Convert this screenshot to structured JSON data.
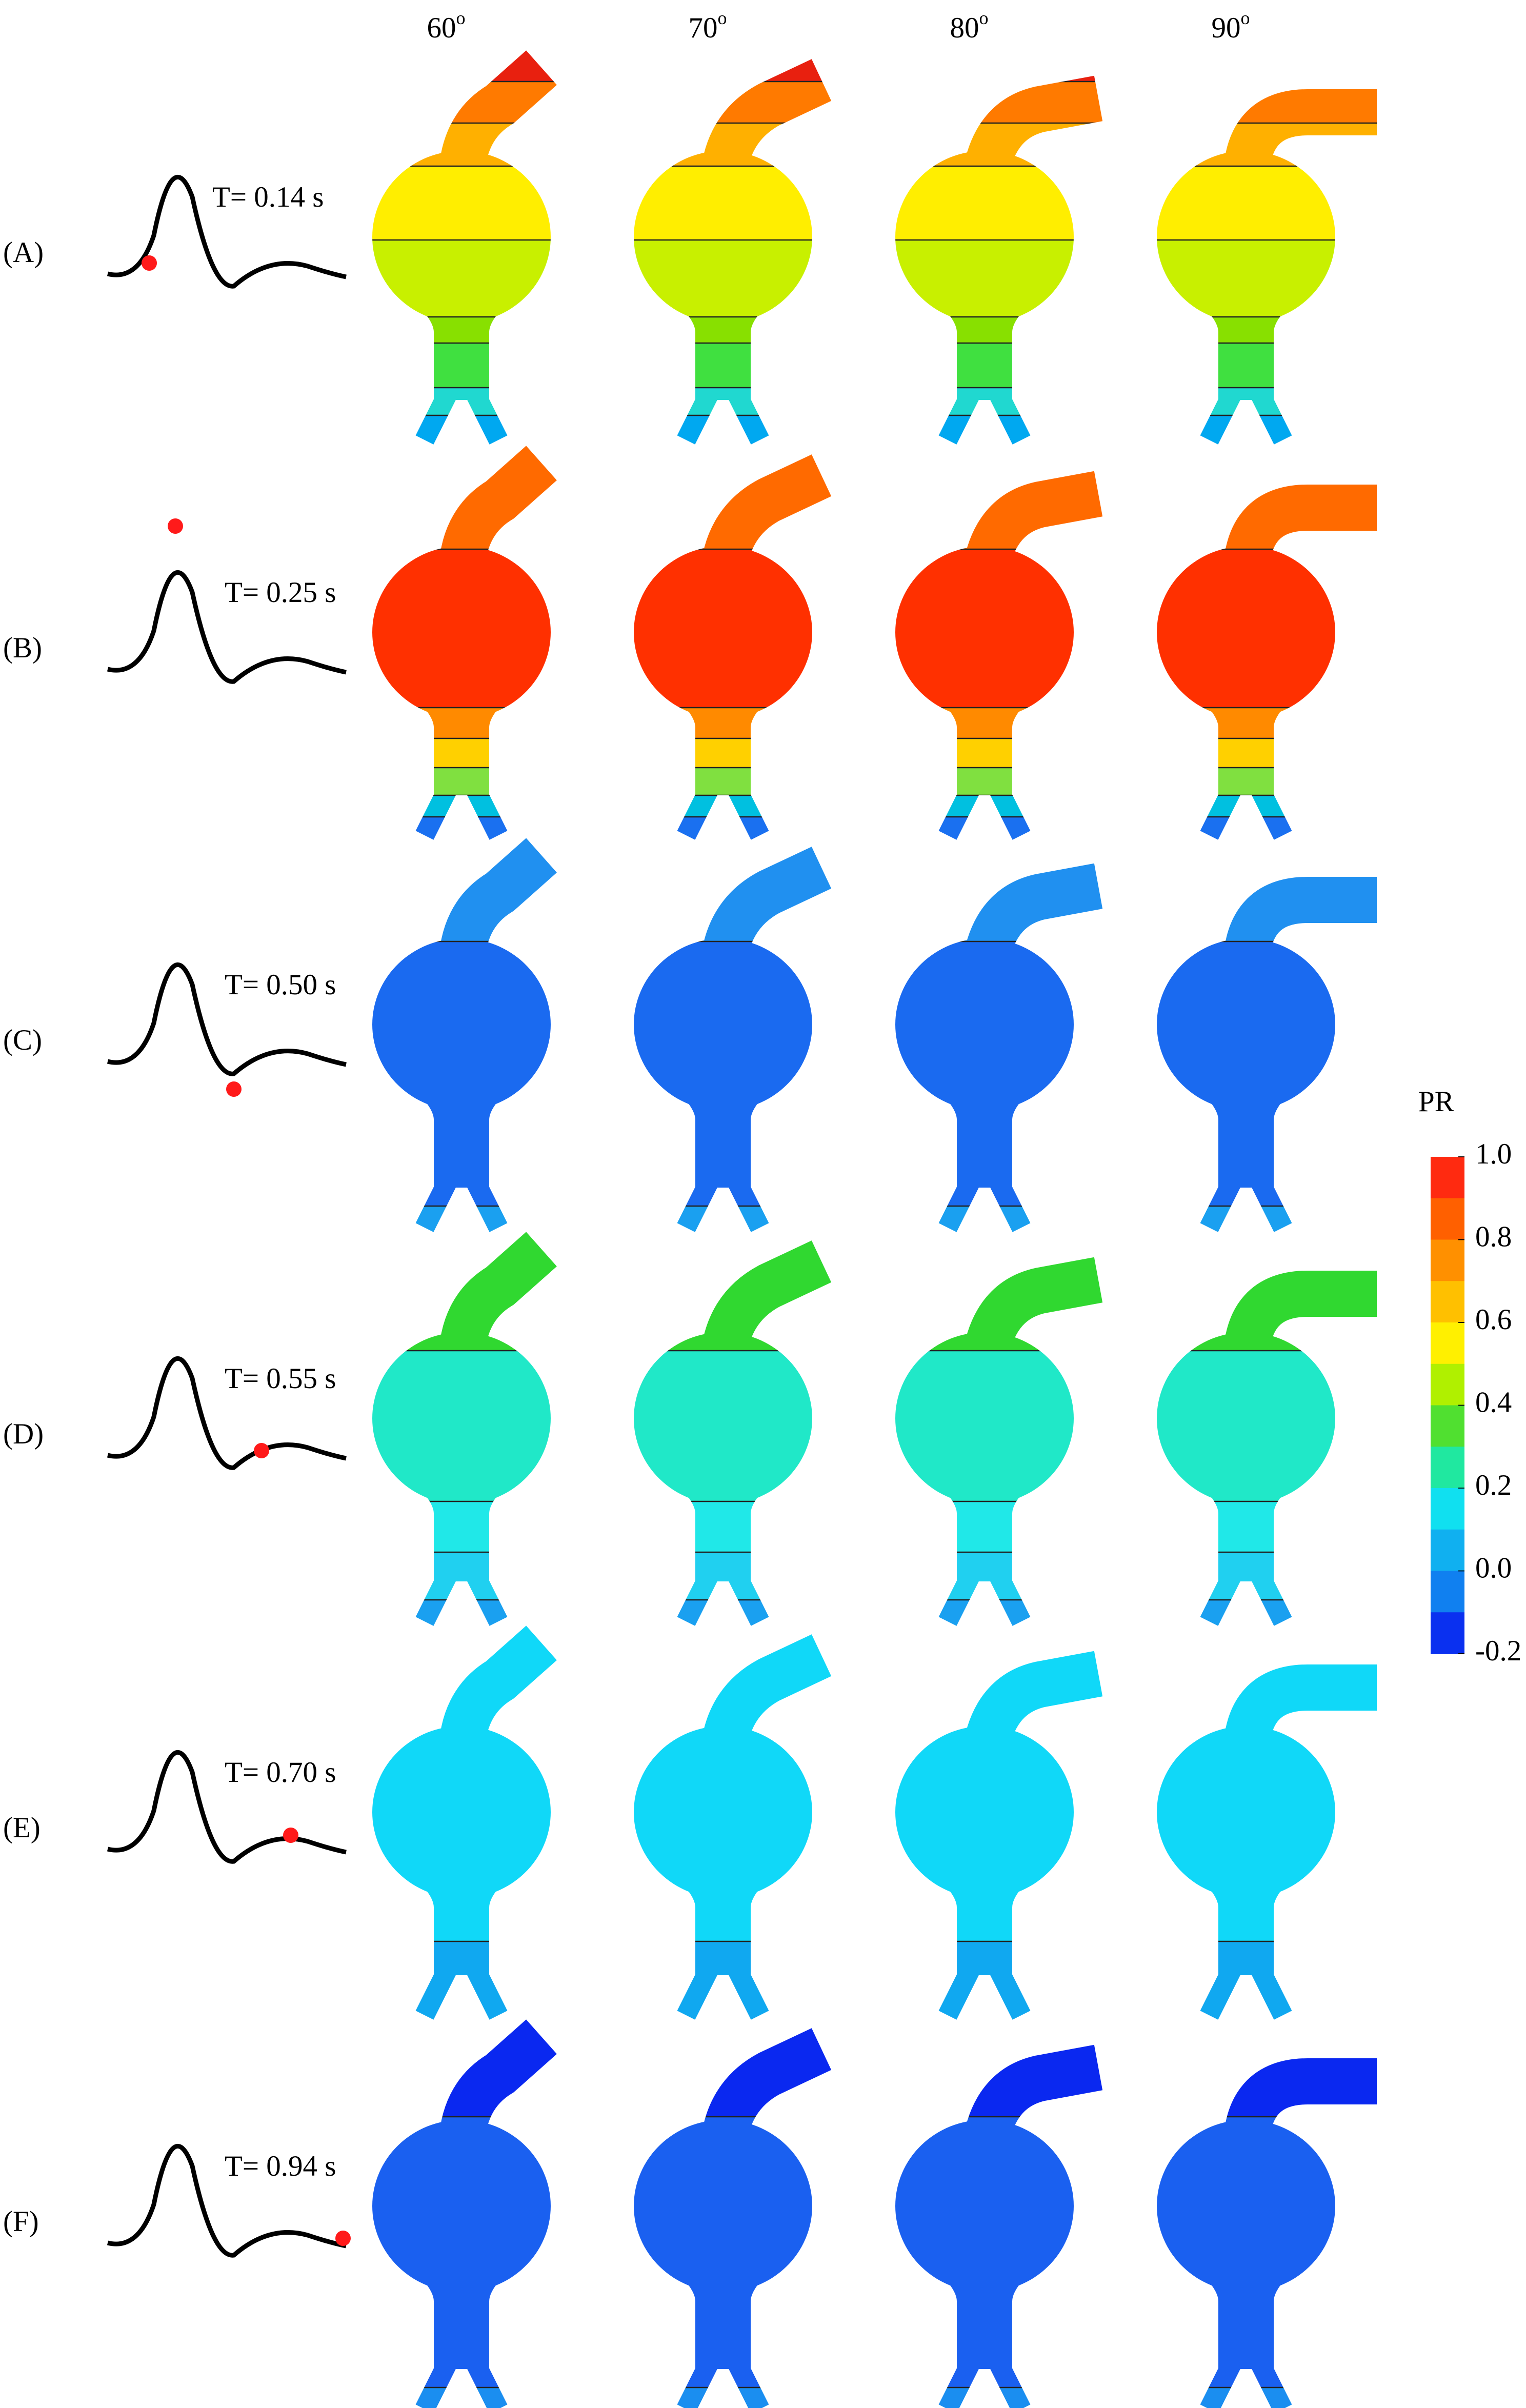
{
  "columns": [
    {
      "angle": "60",
      "superscript": "o"
    },
    {
      "angle": "70",
      "superscript": "o"
    },
    {
      "angle": "80",
      "superscript": "o"
    },
    {
      "angle": "90",
      "superscript": "o"
    }
  ],
  "rows": [
    {
      "label": "(A)",
      "time": "T= 0.14 s"
    },
    {
      "label": "(B)",
      "time": "T= 0.25 s"
    },
    {
      "label": "(C)",
      "time": "T= 0.50 s"
    },
    {
      "label": "(D)",
      "time": "T= 0.55 s"
    },
    {
      "label": "(E)",
      "time": "T= 0.70 s"
    },
    {
      "label": "(F)",
      "time": "T= 0.94 s"
    }
  ],
  "colorbar": {
    "title": "PR",
    "range": [
      -0.2,
      1.0
    ],
    "ticks": [
      {
        "value": 1.0,
        "label": "1.0"
      },
      {
        "value": 0.8,
        "label": "0.8"
      },
      {
        "value": 0.6,
        "label": "0.6"
      },
      {
        "value": 0.4,
        "label": "0.4"
      },
      {
        "value": 0.2,
        "label": "0.2"
      },
      {
        "value": 0,
        "label": "0.0"
      },
      {
        "value": -0.2,
        "label": "-0.2"
      }
    ],
    "colors": [
      "#ff2a10",
      "#ff6000",
      "#ff9000",
      "#ffc000",
      "#fff000",
      "#b0f000",
      "#50e030",
      "#20e8a0",
      "#10e0f0",
      "#10b0f0",
      "#1080f0",
      "#0a30f0"
    ]
  }
}
